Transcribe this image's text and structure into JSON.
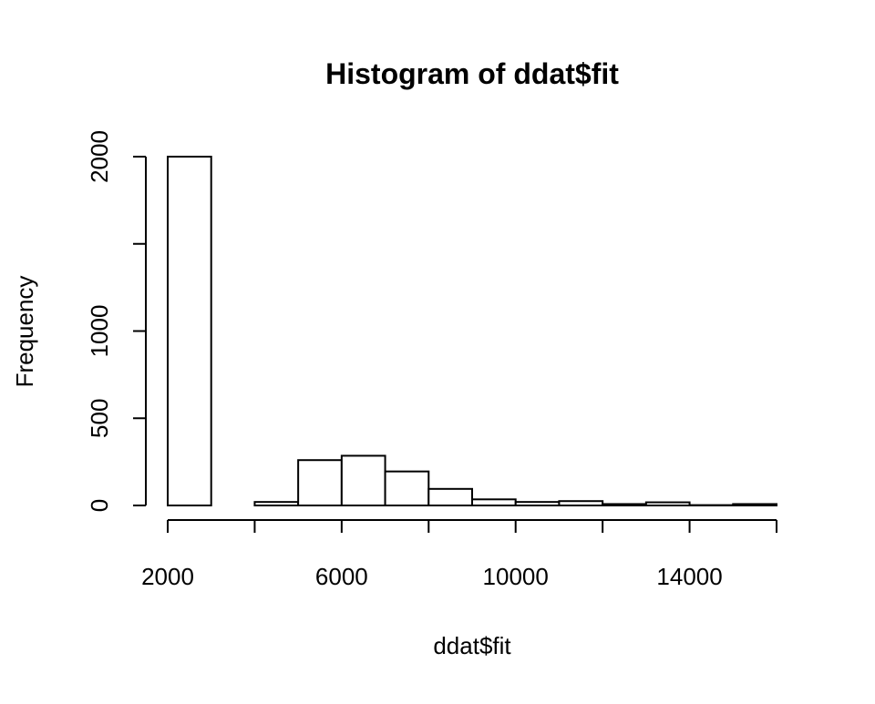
{
  "chart_data": {
    "type": "bar",
    "title": "Histogram of ddat$fit",
    "xlabel": "ddat$fit",
    "ylabel": "Frequency",
    "bins": [
      {
        "start": 2000,
        "end": 3000,
        "count": 2000
      },
      {
        "start": 3000,
        "end": 4000,
        "count": 0
      },
      {
        "start": 4000,
        "end": 5000,
        "count": 20
      },
      {
        "start": 5000,
        "end": 6000,
        "count": 260
      },
      {
        "start": 6000,
        "end": 7000,
        "count": 285
      },
      {
        "start": 7000,
        "end": 8000,
        "count": 195
      },
      {
        "start": 8000,
        "end": 9000,
        "count": 95
      },
      {
        "start": 9000,
        "end": 10000,
        "count": 35
      },
      {
        "start": 10000,
        "end": 11000,
        "count": 20
      },
      {
        "start": 11000,
        "end": 12000,
        "count": 25
      },
      {
        "start": 12000,
        "end": 13000,
        "count": 8
      },
      {
        "start": 13000,
        "end": 14000,
        "count": 18
      },
      {
        "start": 14000,
        "end": 15000,
        "count": 2
      },
      {
        "start": 15000,
        "end": 16000,
        "count": 8
      }
    ],
    "x_ticks": [
      2000,
      4000,
      6000,
      8000,
      10000,
      12000,
      14000,
      16000
    ],
    "x_tick_labels": [
      "2000",
      "",
      "6000",
      "",
      "10000",
      "",
      "14000",
      ""
    ],
    "y_ticks": [
      0,
      500,
      1000,
      1500,
      2000
    ],
    "y_tick_labels": [
      "0",
      "500",
      "1000",
      "",
      "2000"
    ],
    "xlim": [
      2000,
      16000
    ],
    "ylim": [
      0,
      2000
    ],
    "grid": false,
    "legend": "none"
  }
}
